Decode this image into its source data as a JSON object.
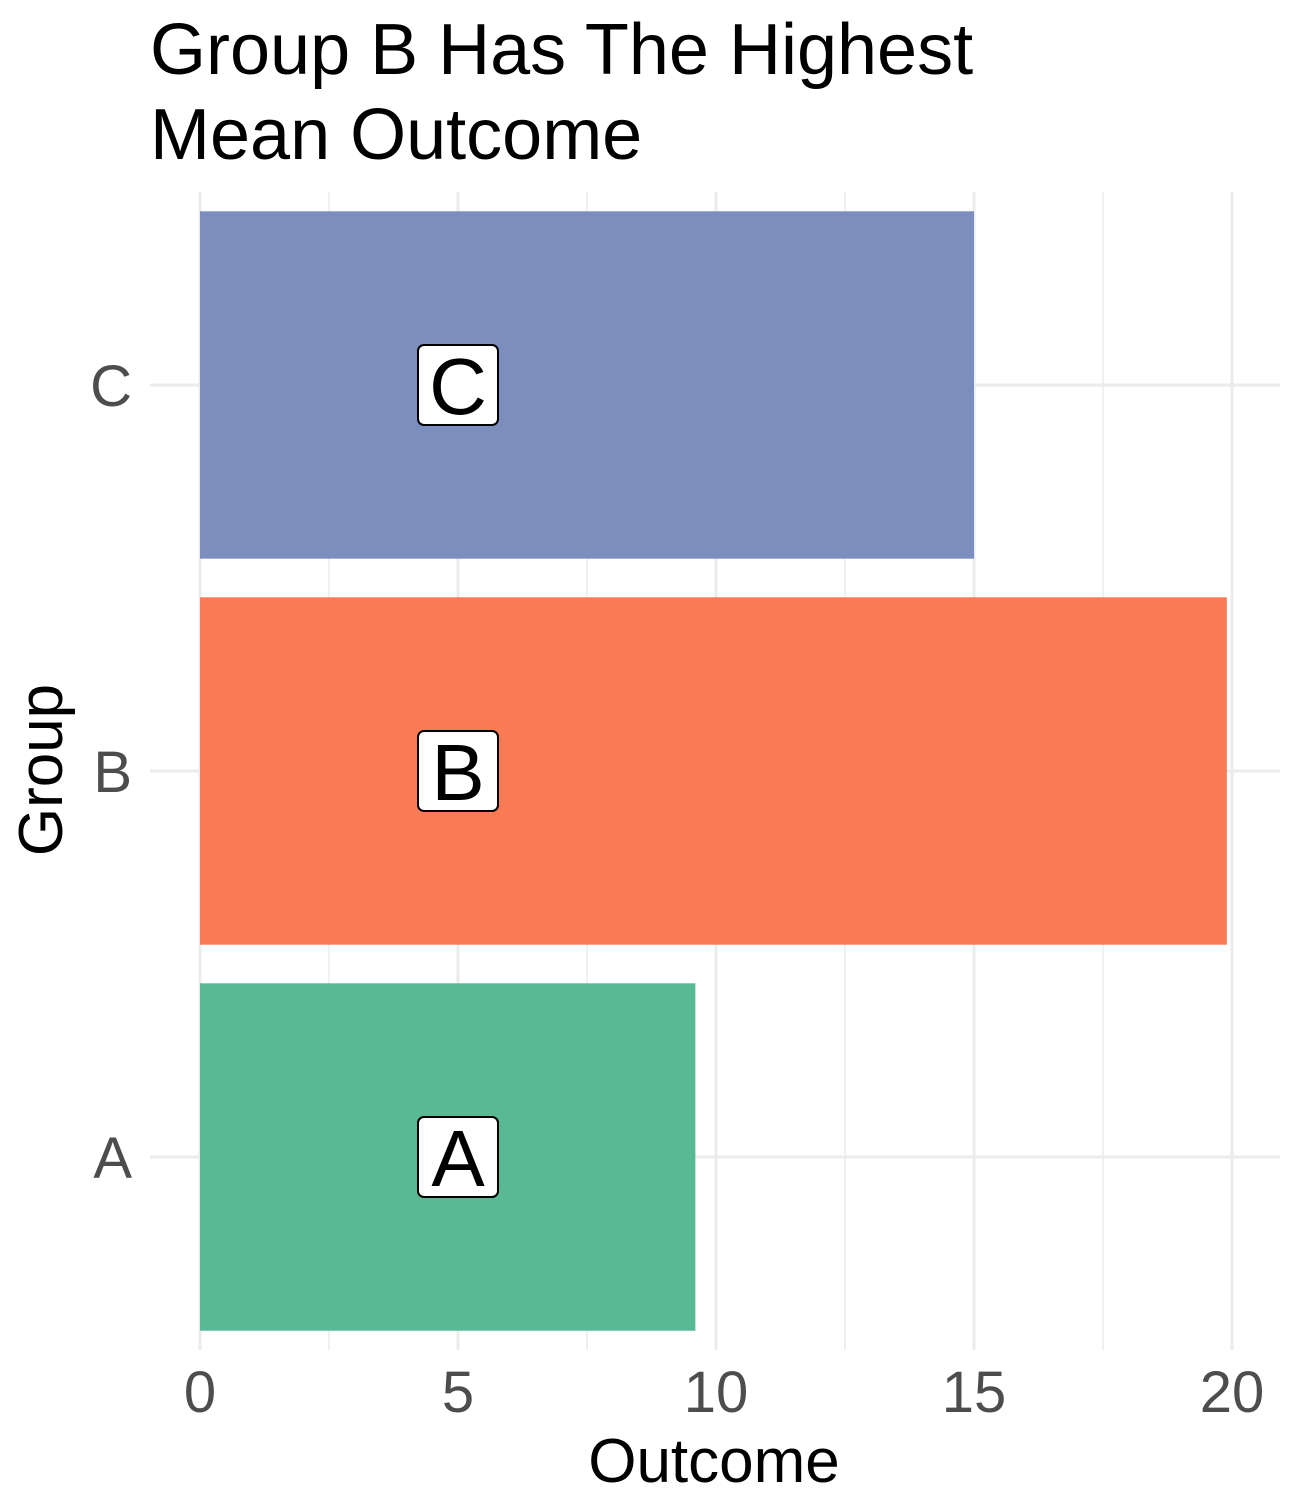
{
  "chart_data": {
    "type": "bar",
    "orientation": "horizontal",
    "title_lines": [
      "Group B Has The Highest",
      "Mean Outcome"
    ],
    "xlabel": "Outcome",
    "ylabel": "Group",
    "categories": [
      "A",
      "B",
      "C"
    ],
    "values": [
      9.6,
      19.9,
      15.0
    ],
    "bar_labels": [
      "A",
      "B",
      "C"
    ],
    "bar_label_x": 5,
    "colors": [
      "#59B994",
      "#F87B55",
      "#7B8EBE"
    ],
    "xlim": [
      0,
      20.9
    ],
    "xticks": [
      0,
      5,
      10,
      15,
      20
    ],
    "tick_labels": [
      "0",
      "5",
      "10",
      "15",
      "20"
    ],
    "grid": true,
    "legend": "none"
  }
}
